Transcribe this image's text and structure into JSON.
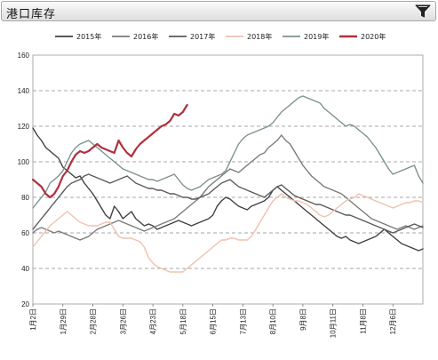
{
  "header": {
    "title": "港口库存",
    "filter_icon": "filter-icon"
  },
  "chart_data": {
    "type": "line",
    "title": "",
    "xlabel": "",
    "ylabel": "",
    "ylim": [
      20,
      160
    ],
    "yticks": [
      20,
      40,
      60,
      80,
      100,
      120,
      140,
      160
    ],
    "grid": true,
    "legend_placement": "top",
    "x_tick_labels": [
      "1月2日",
      "1月29日",
      "2月28日",
      "3月26日",
      "4月23日",
      "5月18日",
      "6月15日",
      "7月13日",
      "8月10日",
      "9月8日",
      "10月11日",
      "11月8日",
      "12月6日"
    ],
    "x_tick_positions": [
      0,
      7,
      14,
      21,
      28,
      35,
      42,
      49,
      56,
      63,
      70,
      77,
      84
    ],
    "x_max": 91,
    "series": [
      {
        "name": "2015年",
        "color": "#404040",
        "width": 1.4,
        "values": [
          119,
          115,
          112,
          108,
          106,
          104,
          102,
          97,
          95,
          93,
          91,
          92,
          88,
          85,
          82,
          78,
          74,
          70,
          68,
          75,
          72,
          68,
          70,
          72,
          68,
          66,
          64,
          65,
          64,
          62,
          63,
          64,
          65,
          66,
          67,
          66,
          65,
          64,
          65,
          66,
          67,
          68,
          70,
          75,
          78,
          80,
          79,
          77,
          75,
          74,
          73,
          75,
          76,
          77,
          78,
          80,
          84,
          86,
          84,
          82,
          80,
          78,
          76,
          74,
          72,
          70,
          68,
          66,
          64,
          62,
          60,
          58,
          57,
          58,
          56,
          55,
          54,
          55,
          56,
          57,
          58,
          60,
          62,
          60,
          58,
          56,
          54,
          53,
          52,
          51,
          50,
          51
        ]
      },
      {
        "name": "2016年",
        "color": "#7a7a7a",
        "width": 1.4,
        "values": [
          60,
          62,
          63,
          62,
          61,
          60,
          61,
          60,
          59,
          58,
          57,
          56,
          57,
          58,
          60,
          62,
          63,
          64,
          65,
          66,
          67,
          66,
          65,
          64,
          63,
          62,
          61,
          62,
          63,
          64,
          65,
          66,
          67,
          68,
          70,
          72,
          74,
          76,
          78,
          80,
          83,
          86,
          88,
          90,
          92,
          94,
          96,
          95,
          94,
          96,
          98,
          100,
          102,
          104,
          105,
          108,
          110,
          112,
          115,
          112,
          110,
          106,
          102,
          98,
          95,
          92,
          90,
          88,
          86,
          85,
          84,
          83,
          82,
          80,
          78,
          76,
          74,
          72,
          70,
          68,
          67,
          66,
          65,
          64,
          63,
          62,
          63,
          64,
          63,
          62,
          63,
          64
        ]
      },
      {
        "name": "2017年",
        "color": "#5a5a5a",
        "width": 1.4,
        "values": [
          62,
          65,
          68,
          71,
          74,
          77,
          80,
          83,
          86,
          88,
          89,
          90,
          92,
          93,
          92,
          91,
          90,
          89,
          88,
          89,
          90,
          91,
          92,
          90,
          88,
          87,
          86,
          85,
          85,
          84,
          84,
          83,
          82,
          82,
          81,
          80,
          80,
          79,
          79,
          80,
          81,
          82,
          84,
          86,
          88,
          89,
          90,
          88,
          86,
          85,
          84,
          83,
          82,
          81,
          80,
          82,
          84,
          86,
          87,
          85,
          83,
          81,
          80,
          79,
          78,
          77,
          76,
          76,
          75,
          74,
          73,
          72,
          71,
          70,
          70,
          69,
          68,
          67,
          66,
          65,
          64,
          63,
          62,
          61,
          60,
          61,
          62,
          63,
          64,
          65,
          64,
          63
        ]
      },
      {
        "name": "2018年",
        "color": "#f0c0b0",
        "width": 1.4,
        "values": [
          52,
          55,
          58,
          61,
          64,
          66,
          68,
          70,
          72,
          70,
          68,
          66,
          65,
          64,
          64,
          64,
          65,
          66,
          66,
          62,
          58,
          57,
          57,
          57,
          56,
          55,
          52,
          46,
          43,
          41,
          40,
          39,
          38,
          38,
          38,
          38,
          40,
          42,
          44,
          46,
          48,
          50,
          52,
          54,
          56,
          56,
          57,
          57,
          56,
          56,
          56,
          58,
          62,
          66,
          70,
          74,
          78,
          80,
          82,
          80,
          79,
          78,
          78,
          77,
          76,
          74,
          72,
          70,
          69,
          70,
          72,
          74,
          76,
          78,
          79,
          80,
          82,
          81,
          80,
          79,
          78,
          77,
          76,
          75,
          74,
          75,
          76,
          77,
          77,
          78,
          78,
          77
        ]
      },
      {
        "name": "2019年",
        "color": "#7b9090",
        "width": 1.4,
        "values": [
          74,
          77,
          80,
          83,
          88,
          90,
          92,
          95,
          100,
          105,
          108,
          110,
          111,
          112,
          110,
          108,
          106,
          104,
          102,
          100,
          98,
          96,
          95,
          94,
          93,
          92,
          91,
          90,
          90,
          89,
          90,
          91,
          92,
          93,
          90,
          87,
          85,
          84,
          85,
          86,
          88,
          90,
          91,
          92,
          93,
          95,
          100,
          105,
          110,
          113,
          115,
          116,
          117,
          118,
          119,
          120,
          122,
          125,
          128,
          130,
          132,
          134,
          136,
          137,
          136,
          135,
          134,
          133,
          130,
          128,
          126,
          124,
          122,
          120,
          121,
          120,
          118,
          116,
          114,
          111,
          108,
          104,
          100,
          96,
          93,
          94,
          95,
          96,
          97,
          98,
          92,
          88
        ]
      },
      {
        "name": "2020年",
        "color": "#b03040",
        "width": 2.2,
        "values": [
          90,
          88,
          86,
          82,
          80,
          82,
          86,
          92,
          95,
          100,
          104,
          106,
          105,
          106,
          108,
          110,
          108,
          107,
          106,
          105,
          112,
          108,
          105,
          103,
          107,
          110,
          112,
          114,
          116,
          118,
          120,
          121,
          123,
          127,
          126,
          128,
          132
        ]
      }
    ]
  }
}
